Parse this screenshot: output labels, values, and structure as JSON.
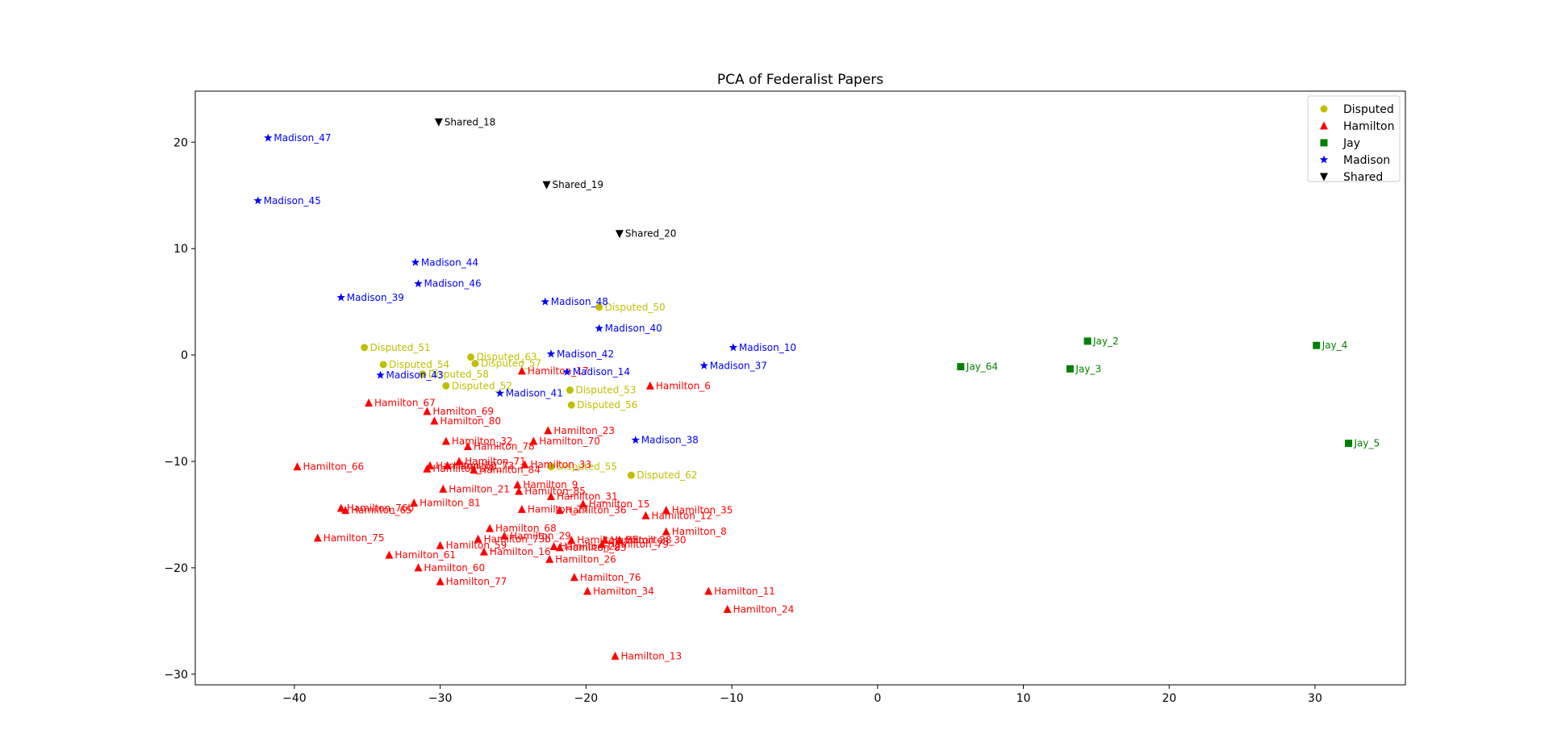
{
  "chart_data": {
    "type": "scatter",
    "title": "PCA of Federalist Papers",
    "xlabel": "",
    "ylabel": "",
    "xlim": [
      -46.8,
      36.2
    ],
    "ylim": [
      -31,
      24.8
    ],
    "x_ticks": [
      -40,
      -30,
      -20,
      -10,
      0,
      10,
      20,
      30
    ],
    "y_ticks": [
      -30,
      -20,
      -10,
      0,
      10,
      20
    ],
    "grid": false,
    "legend_position": "top-right",
    "series": [
      {
        "name": "Disputed",
        "marker": "circle",
        "color": "#bfbf00",
        "points": [
          {
            "label": "Disputed_51",
            "x": -35.2,
            "y": 0.7
          },
          {
            "label": "Disputed_54",
            "x": -33.9,
            "y": -0.9
          },
          {
            "label": "Disputed_58",
            "x": -31.2,
            "y": -1.8
          },
          {
            "label": "Disputed_52",
            "x": -29.6,
            "y": -2.9
          },
          {
            "label": "Disputed_63",
            "x": -27.9,
            "y": -0.2
          },
          {
            "label": "Disputed_57",
            "x": -27.6,
            "y": -0.8
          },
          {
            "label": "Disputed_50",
            "x": -19.1,
            "y": 4.5
          },
          {
            "label": "Disputed_53",
            "x": -21.1,
            "y": -3.3
          },
          {
            "label": "Disputed_56",
            "x": -21.0,
            "y": -4.7
          },
          {
            "label": "Disputed_55",
            "x": -22.4,
            "y": -10.5
          },
          {
            "label": "Disputed_62",
            "x": -16.9,
            "y": -11.3
          }
        ]
      },
      {
        "name": "Hamilton",
        "marker": "triangle-up",
        "color": "#ff0000",
        "points": [
          {
            "label": "Hamilton_17",
            "x": -24.4,
            "y": -1.5
          },
          {
            "label": "Hamilton_6",
            "x": -15.6,
            "y": -2.9
          },
          {
            "label": "Hamilton_67",
            "x": -34.9,
            "y": -4.5
          },
          {
            "label": "Hamilton_69",
            "x": -30.9,
            "y": -5.3
          },
          {
            "label": "Hamilton_80",
            "x": -30.4,
            "y": -6.2
          },
          {
            "label": "Hamilton_23",
            "x": -22.6,
            "y": -7.1
          },
          {
            "label": "Hamilton_32",
            "x": -29.6,
            "y": -8.1
          },
          {
            "label": "Hamilton_70",
            "x": -23.6,
            "y": -8.1
          },
          {
            "label": "Hamilton_78",
            "x": -28.1,
            "y": -8.6
          },
          {
            "label": "Hamilton_66",
            "x": -39.8,
            "y": -10.5
          },
          {
            "label": "Hamilton_71",
            "x": -28.7,
            "y": -10.0
          },
          {
            "label": "Hamilton_33",
            "x": -24.2,
            "y": -10.3
          },
          {
            "label": "Hamilton_72",
            "x": -30.7,
            "y": -10.4
          },
          {
            "label": "Hamilton_73",
            "x": -29.5,
            "y": -10.4
          },
          {
            "label": "Hamilton_74",
            "x": -30.9,
            "y": -10.7
          },
          {
            "label": "Hamilton_84",
            "x": -27.7,
            "y": -10.8
          },
          {
            "label": "Hamilton_9",
            "x": -24.7,
            "y": -12.2
          },
          {
            "label": "Hamilton_85",
            "x": -24.6,
            "y": -12.8
          },
          {
            "label": "Hamilton_21",
            "x": -29.8,
            "y": -12.6
          },
          {
            "label": "Hamilton_31",
            "x": -22.4,
            "y": -13.3
          },
          {
            "label": "Hamilton_81",
            "x": -31.8,
            "y": -13.9
          },
          {
            "label": "Hamilton_15",
            "x": -20.2,
            "y": -14.0
          },
          {
            "label": "Hamilton_76b",
            "x": -36.8,
            "y": -14.4
          },
          {
            "label": "Hamilton_65",
            "x": -36.5,
            "y": -14.6
          },
          {
            "label": "Hamilton_27",
            "x": -24.4,
            "y": -14.5
          },
          {
            "label": "Hamilton_36",
            "x": -21.8,
            "y": -14.6
          },
          {
            "label": "Hamilton_35",
            "x": -14.5,
            "y": -14.6
          },
          {
            "label": "Hamilton_12",
            "x": -15.9,
            "y": -15.1
          },
          {
            "label": "Hamilton_68",
            "x": -26.6,
            "y": -16.3
          },
          {
            "label": "Hamilton_8",
            "x": -14.5,
            "y": -16.6
          },
          {
            "label": "Hamilton_29",
            "x": -25.6,
            "y": -17.0
          },
          {
            "label": "Hamilton_75",
            "x": -38.4,
            "y": -17.2
          },
          {
            "label": "Hamilton_73b",
            "x": -27.4,
            "y": -17.3
          },
          {
            "label": "Hamilton_25",
            "x": -21.0,
            "y": -17.4
          },
          {
            "label": "Hamilton_28",
            "x": -18.7,
            "y": -17.4
          },
          {
            "label": "Hamilton_30",
            "x": -17.7,
            "y": -17.4
          },
          {
            "label": "Hamilton_59",
            "x": -30.0,
            "y": -17.9
          },
          {
            "label": "Hamilton_22",
            "x": -22.2,
            "y": -18.0
          },
          {
            "label": "Hamilton_79",
            "x": -18.9,
            "y": -17.8
          },
          {
            "label": "Hamilton_83",
            "x": -21.8,
            "y": -18.1
          },
          {
            "label": "Hamilton_16",
            "x": -27.0,
            "y": -18.5
          },
          {
            "label": "Hamilton_61",
            "x": -33.5,
            "y": -18.8
          },
          {
            "label": "Hamilton_26",
            "x": -22.5,
            "y": -19.2
          },
          {
            "label": "Hamilton_60",
            "x": -31.5,
            "y": -20.0
          },
          {
            "label": "Hamilton_76",
            "x": -20.8,
            "y": -20.9
          },
          {
            "label": "Hamilton_77",
            "x": -30.0,
            "y": -21.3
          },
          {
            "label": "Hamilton_34",
            "x": -19.9,
            "y": -22.2
          },
          {
            "label": "Hamilton_11",
            "x": -11.6,
            "y": -22.2
          },
          {
            "label": "Hamilton_24",
            "x": -10.3,
            "y": -23.9
          },
          {
            "label": "Hamilton_13",
            "x": -18.0,
            "y": -28.3
          }
        ]
      },
      {
        "name": "Jay",
        "marker": "square",
        "color": "#008000",
        "points": [
          {
            "label": "Jay_2",
            "x": 14.4,
            "y": 1.3
          },
          {
            "label": "Jay_4",
            "x": 30.1,
            "y": 0.9
          },
          {
            "label": "Jay_64",
            "x": 5.7,
            "y": -1.1
          },
          {
            "label": "Jay_3",
            "x": 13.2,
            "y": -1.3
          },
          {
            "label": "Jay_5",
            "x": 32.3,
            "y": -8.3
          }
        ]
      },
      {
        "name": "Madison",
        "marker": "star",
        "color": "#0000ff",
        "points": [
          {
            "label": "Madison_47",
            "x": -41.8,
            "y": 20.4
          },
          {
            "label": "Madison_45",
            "x": -42.5,
            "y": 14.5
          },
          {
            "label": "Madison_44",
            "x": -31.7,
            "y": 8.7
          },
          {
            "label": "Madison_46",
            "x": -31.5,
            "y": 6.7
          },
          {
            "label": "Madison_39",
            "x": -36.8,
            "y": 5.4
          },
          {
            "label": "Madison_48",
            "x": -22.8,
            "y": 5.0
          },
          {
            "label": "Madison_40",
            "x": -19.1,
            "y": 2.5
          },
          {
            "label": "Madison_42",
            "x": -22.4,
            "y": 0.1
          },
          {
            "label": "Madison_10",
            "x": -9.9,
            "y": 0.7
          },
          {
            "label": "Madison_37",
            "x": -11.9,
            "y": -1.0
          },
          {
            "label": "Madison_14",
            "x": -21.3,
            "y": -1.6
          },
          {
            "label": "Madison_43",
            "x": -34.1,
            "y": -1.9
          },
          {
            "label": "Madison_41",
            "x": -25.9,
            "y": -3.6
          },
          {
            "label": "Madison_38",
            "x": -16.6,
            "y": -8.0
          }
        ]
      },
      {
        "name": "Shared",
        "marker": "triangle-down",
        "color": "#000000",
        "points": [
          {
            "label": "Shared_18",
            "x": -30.1,
            "y": 21.9
          },
          {
            "label": "Shared_19",
            "x": -22.7,
            "y": 16.0
          },
          {
            "label": "Shared_20",
            "x": -17.7,
            "y": 11.4
          }
        ]
      }
    ]
  }
}
